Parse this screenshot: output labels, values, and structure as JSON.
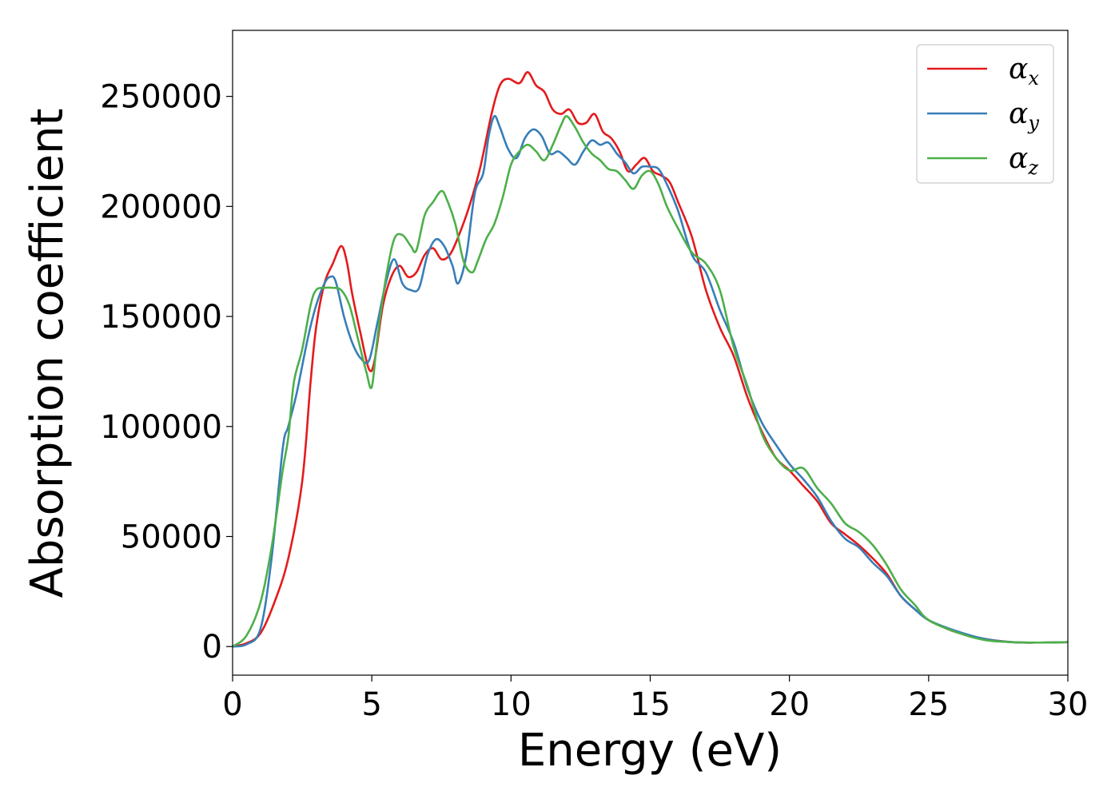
{
  "chart_data": {
    "type": "line",
    "xlabel": "Energy (eV)",
    "ylabel": "Absorption coefficient",
    "xlim": [
      0,
      30
    ],
    "ylim": [
      -13000,
      280000
    ],
    "xticks": [
      0,
      5,
      10,
      15,
      20,
      25,
      30
    ],
    "xtick_labels": [
      "0",
      "5",
      "10",
      "15",
      "20",
      "25",
      "30"
    ],
    "yticks": [
      0,
      50000,
      100000,
      150000,
      200000,
      250000
    ],
    "ytick_labels": [
      "0",
      "50000",
      "100000",
      "150000",
      "200000",
      "250000"
    ],
    "grid": false,
    "legend_position": "top-right",
    "series": [
      {
        "name": "α",
        "subscript": "x",
        "color": "#e41a1c",
        "x": [
          0,
          0.5,
          1.0,
          1.5,
          2.0,
          2.5,
          2.8,
          3.0,
          3.3,
          3.6,
          3.9,
          4.1,
          4.3,
          4.6,
          4.9,
          5.1,
          5.4,
          5.7,
          6.0,
          6.3,
          6.6,
          6.9,
          7.2,
          7.5,
          7.8,
          8.1,
          8.5,
          8.9,
          9.3,
          9.6,
          9.9,
          10.3,
          10.6,
          10.9,
          11.2,
          11.5,
          11.8,
          12.1,
          12.4,
          12.7,
          13.0,
          13.3,
          13.6,
          13.9,
          14.2,
          14.5,
          14.8,
          15.1,
          15.4,
          15.7,
          16.0,
          16.5,
          17.0,
          17.5,
          18.0,
          18.5,
          19.0,
          19.5,
          20.0,
          20.5,
          21.0,
          21.5,
          22.0,
          22.5,
          23.0,
          23.5,
          24.0,
          24.5,
          25.0,
          25.5,
          26.0,
          27.0,
          28.0,
          29.0,
          30.0
        ],
        "y": [
          0,
          1500,
          6000,
          20000,
          40000,
          75000,
          120000,
          145000,
          165000,
          174000,
          182000,
          175000,
          160000,
          142000,
          126000,
          130000,
          155000,
          168000,
          173000,
          168000,
          170000,
          178000,
          181000,
          176000,
          178000,
          186000,
          200000,
          218000,
          242000,
          255000,
          258000,
          256000,
          261000,
          255000,
          252000,
          244000,
          242000,
          244000,
          238000,
          238000,
          242000,
          234000,
          231000,
          225000,
          216000,
          219000,
          222000,
          216000,
          214000,
          211000,
          202000,
          186000,
          162000,
          145000,
          132000,
          113000,
          98000,
          86000,
          80000,
          73000,
          66000,
          56000,
          51000,
          46000,
          40000,
          33000,
          23000,
          17000,
          12000,
          9000,
          6500,
          3500,
          2000,
          1800,
          2000
        ]
      },
      {
        "name": "α",
        "subscript": "y",
        "color": "#377eb8",
        "x": [
          0,
          0.5,
          1.0,
          1.4,
          1.8,
          2.0,
          2.3,
          2.7,
          3.0,
          3.3,
          3.5,
          3.7,
          4.0,
          4.3,
          4.6,
          4.9,
          5.2,
          5.5,
          5.8,
          6.1,
          6.4,
          6.7,
          7.0,
          7.3,
          7.6,
          7.9,
          8.1,
          8.4,
          8.7,
          9.0,
          9.2,
          9.4,
          9.6,
          9.9,
          10.2,
          10.5,
          10.8,
          11.1,
          11.4,
          11.7,
          12.0,
          12.3,
          12.6,
          12.9,
          13.2,
          13.5,
          13.8,
          14.1,
          14.4,
          14.7,
          15.0,
          15.3,
          15.6,
          16.0,
          16.5,
          17.0,
          17.5,
          18.0,
          18.5,
          19.0,
          19.5,
          20.0,
          20.5,
          21.0,
          21.5,
          22.0,
          22.5,
          23.0,
          23.5,
          24.0,
          24.5,
          25.0,
          26.0,
          27.0,
          28.0,
          29.0,
          30.0
        ],
        "y": [
          0,
          1000,
          8000,
          40000,
          90000,
          100000,
          115000,
          140000,
          155000,
          165000,
          168000,
          166000,
          150000,
          138000,
          131000,
          130000,
          147000,
          165000,
          176000,
          165000,
          162000,
          163000,
          178000,
          185000,
          182000,
          173000,
          165000,
          178000,
          206000,
          215000,
          232000,
          241000,
          236000,
          226000,
          222000,
          231000,
          235000,
          232000,
          224000,
          225000,
          222000,
          219000,
          225000,
          230000,
          228000,
          229000,
          224000,
          220000,
          215000,
          218000,
          218000,
          217000,
          210000,
          198000,
          178000,
          170000,
          153000,
          138000,
          117000,
          102000,
          92000,
          83000,
          76000,
          68000,
          57000,
          49000,
          45000,
          38000,
          32000,
          23000,
          17000,
          12000,
          7000,
          3500,
          2000,
          1800,
          2000
        ]
      },
      {
        "name": "α",
        "subscript": "z",
        "color": "#4daf4a",
        "x": [
          0,
          0.5,
          1.0,
          1.4,
          1.8,
          2.0,
          2.2,
          2.5,
          2.8,
          3.0,
          3.3,
          3.6,
          3.9,
          4.2,
          4.5,
          4.8,
          5.0,
          5.2,
          5.5,
          5.8,
          6.1,
          6.4,
          6.6,
          6.9,
          7.2,
          7.5,
          7.7,
          8.0,
          8.3,
          8.6,
          8.8,
          9.1,
          9.4,
          9.7,
          10.0,
          10.3,
          10.6,
          10.9,
          11.2,
          11.5,
          11.8,
          12.0,
          12.3,
          12.6,
          12.9,
          13.2,
          13.5,
          13.8,
          14.1,
          14.4,
          14.7,
          15.0,
          15.3,
          15.6,
          16.0,
          16.5,
          17.0,
          17.5,
          18.0,
          18.5,
          19.0,
          19.5,
          20.0,
          20.5,
          21.0,
          21.5,
          22.0,
          22.5,
          23.0,
          23.5,
          24.0,
          24.5,
          25.0,
          26.0,
          27.0,
          28.0,
          29.0,
          30.0
        ],
        "y": [
          0,
          5000,
          20000,
          45000,
          80000,
          95000,
          120000,
          135000,
          155000,
          162000,
          163000,
          163000,
          162000,
          155000,
          140000,
          125000,
          118000,
          140000,
          167000,
          185000,
          187000,
          182000,
          180000,
          196000,
          202000,
          207000,
          203000,
          192000,
          175000,
          170000,
          175000,
          185000,
          192000,
          204000,
          219000,
          225000,
          228000,
          225000,
          221000,
          228000,
          237000,
          241000,
          236000,
          229000,
          224000,
          221000,
          217000,
          216000,
          212000,
          208000,
          214000,
          216000,
          210000,
          200000,
          190000,
          179000,
          174000,
          162000,
          136000,
          118000,
          97000,
          86000,
          80000,
          81000,
          72000,
          65000,
          56000,
          52000,
          46000,
          37000,
          26000,
          19000,
          12000,
          6500,
          3000,
          2000,
          1800,
          2000
        ]
      }
    ]
  }
}
